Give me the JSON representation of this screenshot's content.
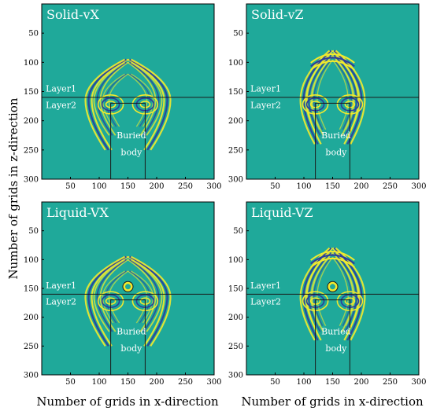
{
  "figure": {
    "ylabel": "Number of grids in z-direction",
    "xlabel": "Number of grids in x-direction"
  },
  "colors": {
    "background": "#1fa99a",
    "positive": "#f4ea2c",
    "negative": "#2c3b9c",
    "lines": "#1a1a1a",
    "text": "#ffffff"
  },
  "chart_data": [
    {
      "type": "heatmap",
      "title": "Solid-vX",
      "xlim": [
        0,
        300
      ],
      "ylim": [
        300,
        0
      ],
      "xticks": [
        50,
        100,
        150,
        200,
        250,
        300
      ],
      "yticks": [
        50,
        100,
        150,
        200,
        250,
        300
      ],
      "interface_z": 160,
      "buried_body": {
        "x_range": [
          120,
          180
        ],
        "z_top": 170
      },
      "annotations": [
        {
          "text": "Layer1",
          "x": 7,
          "z": 150
        },
        {
          "text": "Layer2",
          "x": 7,
          "z": 178
        },
        {
          "text": "Buried",
          "x": 156,
          "z": 230
        },
        {
          "text": "body",
          "x": 156,
          "z": 259
        }
      ]
    },
    {
      "type": "heatmap",
      "title": "Solid-vZ",
      "xlim": [
        0,
        300
      ],
      "ylim": [
        300,
        0
      ],
      "xticks": [
        50,
        100,
        150,
        200,
        250,
        300
      ],
      "yticks": [
        50,
        100,
        150,
        200,
        250,
        300
      ],
      "interface_z": 160,
      "buried_body": {
        "x_range": [
          120,
          180
        ],
        "z_top": 170
      },
      "annotations": [
        {
          "text": "Layer1",
          "x": 7,
          "z": 150
        },
        {
          "text": "Layer2",
          "x": 7,
          "z": 178
        },
        {
          "text": "Buried",
          "x": 156,
          "z": 230
        },
        {
          "text": "body",
          "x": 156,
          "z": 259
        }
      ]
    },
    {
      "type": "heatmap",
      "title": "Liquid-VX",
      "xlim": [
        0,
        300
      ],
      "ylim": [
        300,
        0
      ],
      "xticks": [
        50,
        100,
        150,
        200,
        250,
        300
      ],
      "yticks": [
        50,
        100,
        150,
        200,
        250,
        300
      ],
      "interface_z": 160,
      "buried_body": {
        "x_range": [
          120,
          180
        ],
        "z_top": 170
      },
      "annotations": [
        {
          "text": "Layer1",
          "x": 7,
          "z": 150
        },
        {
          "text": "Layer2",
          "x": 7,
          "z": 178
        },
        {
          "text": "Buried",
          "x": 156,
          "z": 230
        },
        {
          "text": "body",
          "x": 156,
          "z": 259
        }
      ]
    },
    {
      "type": "heatmap",
      "title": "Liquid-VZ",
      "xlim": [
        0,
        300
      ],
      "ylim": [
        300,
        0
      ],
      "xticks": [
        50,
        100,
        150,
        200,
        250,
        300
      ],
      "yticks": [
        50,
        100,
        150,
        200,
        250,
        300
      ],
      "interface_z": 160,
      "buried_body": {
        "x_range": [
          120,
          180
        ],
        "z_top": 170
      },
      "annotations": [
        {
          "text": "Layer1",
          "x": 7,
          "z": 150
        },
        {
          "text": "Layer2",
          "x": 7,
          "z": 178
        },
        {
          "text": "Buried",
          "x": 156,
          "z": 230
        },
        {
          "text": "body",
          "x": 156,
          "z": 259
        }
      ]
    }
  ]
}
